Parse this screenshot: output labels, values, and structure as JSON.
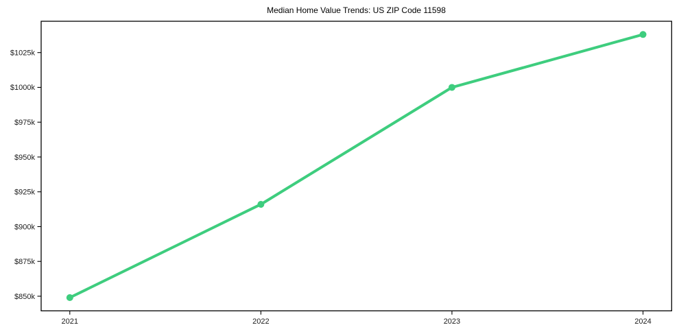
{
  "chart": {
    "title": "Median Home Value Trends: US ZIP Code 11598"
  },
  "chart_data": {
    "type": "line",
    "title": "Median Home Value Trends: US ZIP Code 11598",
    "unit": "USD thousands",
    "x": [
      2021,
      2022,
      2023,
      2024
    ],
    "series": [
      {
        "name": "Median Home Value",
        "values": [
          849,
          916,
          1000,
          1038
        ]
      }
    ],
    "x_tick_labels": [
      "2021",
      "2022",
      "2023",
      "2024"
    ],
    "y_ticks": [
      850,
      875,
      900,
      925,
      950,
      975,
      1000,
      1025
    ],
    "y_tick_labels": [
      "$850k",
      "$875k",
      "$900k",
      "$925k",
      "$950k",
      "$975k",
      "$1000k",
      "$1025k"
    ],
    "xlim": [
      2020.85,
      2024.15
    ],
    "ylim": [
      839.5,
      1047.5
    ],
    "xlabel": "",
    "ylabel": "",
    "grid": false,
    "legend_position": "none",
    "line_color": "#3ecd7e",
    "marker": "circle",
    "marker_radius": 5,
    "line_width": 4,
    "spine_color": "#000000",
    "background_color": "#ffffff"
  }
}
